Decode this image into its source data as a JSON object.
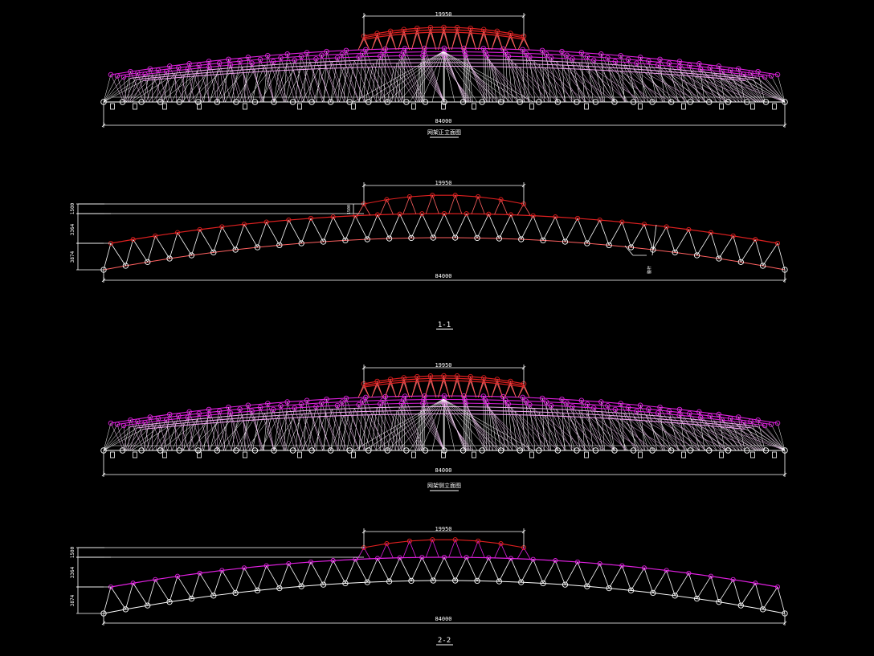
{
  "drawing": {
    "background": "#000000",
    "colors": {
      "dimension": "#ffffff",
      "lower_chord": "#ffffff",
      "web": "#ffffff",
      "upper_chord_magenta": "#e020e0",
      "upper_chord_red": "#e02020",
      "skylight": "#e02020"
    },
    "views": [
      {
        "id": "elevation-a",
        "kind": "3d-elevation",
        "skylight_dim": "19950",
        "span_dim": "84000",
        "caption": "网架正立面图"
      },
      {
        "id": "section-1-1",
        "kind": "section",
        "skylight_dim": "19950",
        "span_dim": "84000",
        "vertical_dims": [
          "1500",
          "3364",
          "3874"
        ],
        "skylight_height_dim": "1500",
        "member_label": "腹杆",
        "caption": "1-1"
      },
      {
        "id": "elevation-b",
        "kind": "3d-elevation",
        "skylight_dim": "19950",
        "span_dim": "84000",
        "caption": "网架侧立面图"
      },
      {
        "id": "section-2-2",
        "kind": "section",
        "skylight_dim": "19950",
        "span_dim": "84000",
        "vertical_dims": [
          "1500",
          "3364",
          "3874"
        ],
        "caption": "2-2"
      }
    ]
  }
}
